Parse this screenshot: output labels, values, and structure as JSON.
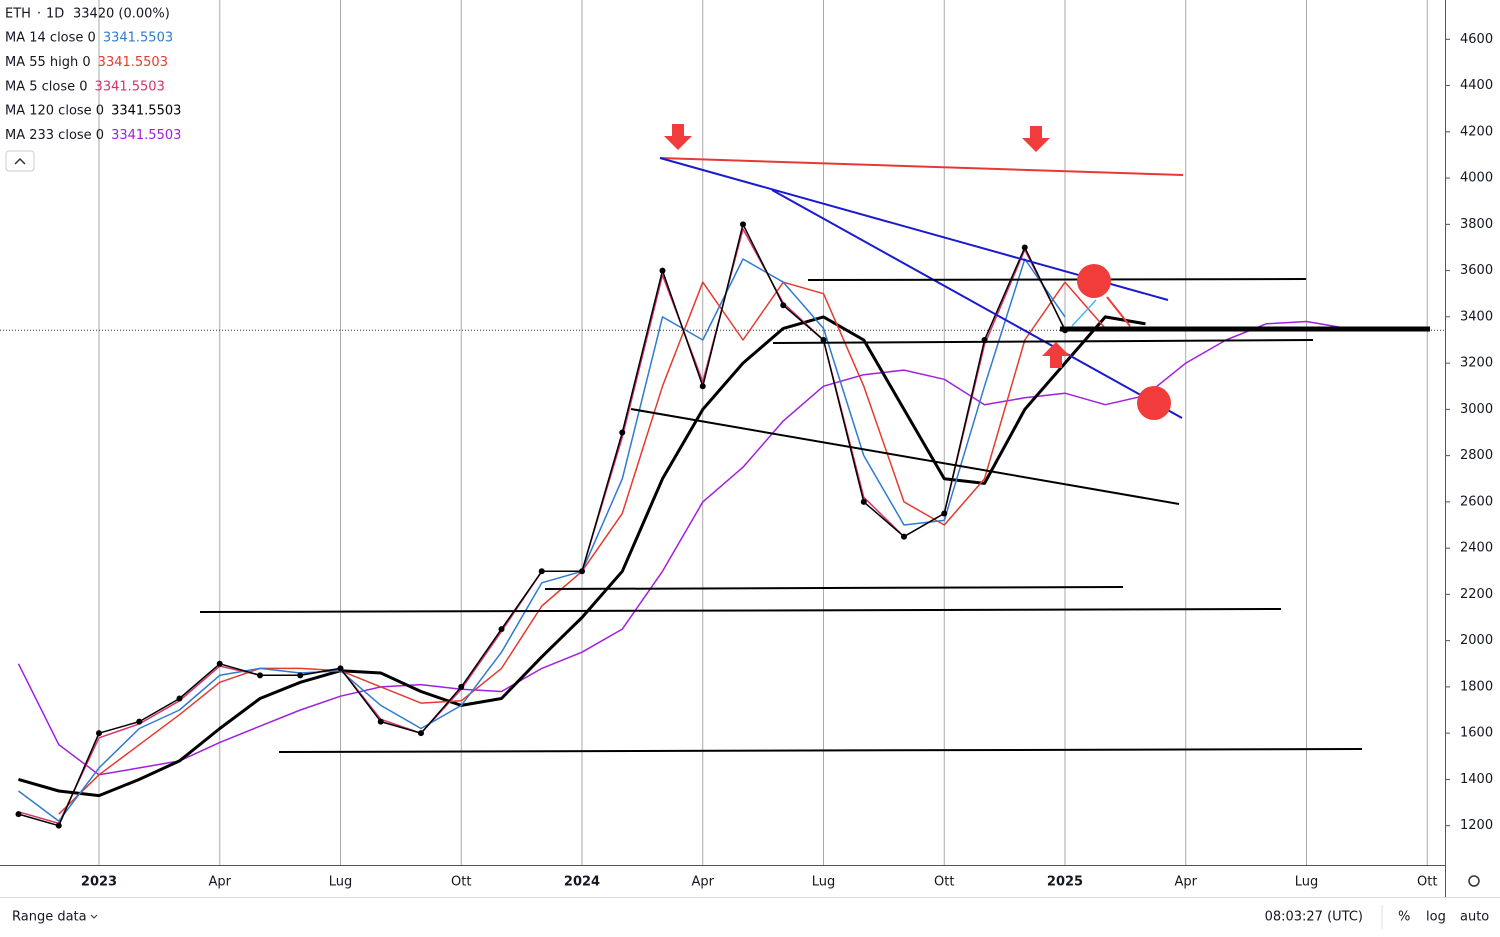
{
  "chart_data": {
    "type": "line",
    "symbol": "ETH",
    "interval": "1D",
    "last": 3342,
    "change": "0 (0.00%)",
    "x": [
      "2022-11",
      "2022-12",
      "2023-01",
      "2023-02",
      "2023-03",
      "2023-04",
      "2023-05",
      "2023-06",
      "2023-07",
      "2023-08",
      "2023-09",
      "2023-10",
      "2023-11",
      "2023-12",
      "2024-01",
      "2024-02",
      "2024-03",
      "2024-04",
      "2024-05",
      "2024-06",
      "2024-07",
      "2024-08",
      "2024-09",
      "2024-10",
      "2024-11",
      "2024-12",
      "2025-01",
      "2025-02",
      "2025-03",
      "2025-04",
      "2025-05",
      "2025-06",
      "2025-07",
      "2025-08"
    ],
    "xlim": [
      "2022-10",
      "2025-11"
    ],
    "xticks": [
      {
        "value": "2023-01",
        "label": "2023"
      },
      {
        "value": "2023-04",
        "label": "Apr"
      },
      {
        "value": "2023-07",
        "label": "Lug"
      },
      {
        "value": "2023-10",
        "label": "Ott"
      },
      {
        "value": "2024-01",
        "label": "2024"
      },
      {
        "value": "2024-04",
        "label": "Apr"
      },
      {
        "value": "2024-07",
        "label": "Lug"
      },
      {
        "value": "2024-10",
        "label": "Ott"
      },
      {
        "value": "2025-01",
        "label": "2025"
      },
      {
        "value": "2025-04",
        "label": "Apr"
      },
      {
        "value": "2025-07",
        "label": "Lug"
      },
      {
        "value": "2025-10",
        "label": "Ott"
      }
    ],
    "ylim": [
      1030,
      4770
    ],
    "yticks": [
      1200,
      1400,
      1600,
      1800,
      2000,
      2200,
      2400,
      2600,
      2800,
      3000,
      3200,
      3400,
      3600,
      3800,
      4000,
      4200,
      4400,
      4600
    ],
    "grid": true,
    "series": [
      {
        "name": "ETH",
        "color": "#000000",
        "markers": true,
        "values": [
          1250,
          1200,
          1600,
          1650,
          1750,
          1900,
          1850,
          1850,
          1880,
          1650,
          1600,
          1800,
          2050,
          2300,
          2300,
          2900,
          3600,
          3100,
          3800,
          3450,
          3300,
          2600,
          2450,
          2550,
          3300,
          3700,
          3342,
          null,
          null,
          null,
          null,
          null,
          null,
          null
        ]
      },
      {
        "name": "MA 14 close 0",
        "last_value": 3341.5503,
        "color": "#2e7bcf",
        "values": [
          1350,
          1220,
          1450,
          1620,
          1700,
          1850,
          1880,
          1860,
          1870,
          1720,
          1620,
          1720,
          1950,
          2250,
          2300,
          2700,
          3400,
          3300,
          3650,
          3550,
          3350,
          2800,
          2500,
          2520,
          3100,
          3650,
          3400,
          null,
          null,
          null,
          null,
          null,
          null,
          null
        ]
      },
      {
        "name": "MA 55 high 0",
        "last_value": 3341.5503,
        "color": "#e53a2e",
        "values": [
          null,
          1250,
          1420,
          1550,
          1680,
          1820,
          1880,
          1880,
          1870,
          1800,
          1730,
          1740,
          1880,
          2150,
          2300,
          2550,
          3100,
          3550,
          3300,
          3550,
          3500,
          3100,
          2600,
          2500,
          2700,
          3300,
          3550,
          3350,
          null,
          null,
          null,
          null,
          null,
          null
        ]
      },
      {
        "name": "MA 5 close 0",
        "last_value": 3341.5503,
        "color": "#d6336c",
        "values": [
          1260,
          1210,
          1580,
          1640,
          1740,
          1890,
          1850,
          1850,
          1880,
          1660,
          1600,
          1790,
          2040,
          2300,
          2300,
          2880,
          3580,
          3120,
          3780,
          3460,
          3300,
          2620,
          2450,
          2550,
          3280,
          3690,
          3345,
          null,
          null,
          null,
          null,
          null,
          null,
          null
        ]
      },
      {
        "name": "MA 120 close 0",
        "last_value": 3341.5503,
        "color": "#000000",
        "width": 3,
        "values": [
          1400,
          1350,
          1330,
          1400,
          1480,
          1620,
          1750,
          1820,
          1870,
          1860,
          1780,
          1720,
          1750,
          1930,
          2100,
          2300,
          2700,
          3000,
          3200,
          3350,
          3400,
          3300,
          3000,
          2700,
          2680,
          3000,
          3200,
          3400,
          3370,
          null,
          null,
          null,
          null,
          null
        ]
      },
      {
        "name": "MA 233 close 0",
        "last_value": 3341.5503,
        "color": "#a020e0",
        "values": [
          1900,
          1550,
          1420,
          1450,
          1480,
          1560,
          1630,
          1700,
          1760,
          1800,
          1810,
          1790,
          1780,
          1880,
          1950,
          2050,
          2300,
          2600,
          2750,
          2950,
          3100,
          3150,
          3170,
          3130,
          3020,
          3050,
          3070,
          3020,
          3060,
          3200,
          3300,
          3370,
          3380,
          3350
        ]
      }
    ]
  },
  "footer": {
    "range": "Range data",
    "time": "08:03:27 (UTC)",
    "percent": "%",
    "log": "log",
    "auto": "auto"
  }
}
